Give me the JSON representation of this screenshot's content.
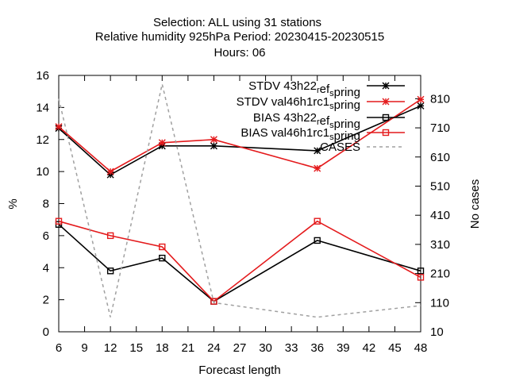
{
  "chart_data": {
    "type": "line",
    "title_lines": [
      "Selection: ALL using    31 stations",
      "Relative humidity 925hPa   Period: 20230415-20230515",
      "Hours:  06"
    ],
    "xlabel": "Forecast length",
    "ylabel": "%",
    "y2label": "No cases",
    "xlim": [
      6,
      48
    ],
    "ylim": [
      0,
      16
    ],
    "y2lim": [
      10,
      890
    ],
    "xticks": [
      6,
      9,
      12,
      15,
      18,
      21,
      24,
      27,
      30,
      33,
      36,
      39,
      42,
      45,
      48
    ],
    "yticks": [
      0,
      2,
      4,
      6,
      8,
      10,
      12,
      14,
      16
    ],
    "y2ticks": [
      10,
      110,
      210,
      310,
      410,
      510,
      610,
      710,
      810
    ],
    "grid": false,
    "legend_position": "top-right",
    "series": [
      {
        "name": "STDV 43h22_ref_spring",
        "legend_parts": [
          [
            "STDV 43h22",
            ""
          ],
          [
            "r",
            "sub"
          ],
          [
            "ef",
            ""
          ],
          [
            "s",
            "sub"
          ],
          [
            "pring",
            ""
          ]
        ],
        "axis": "left",
        "color": "#000000",
        "marker": "star",
        "dash": "",
        "x": [
          6,
          12,
          18,
          24,
          36,
          48
        ],
        "values": [
          12.7,
          9.8,
          11.6,
          11.6,
          11.3,
          14.1
        ]
      },
      {
        "name": "STDV val46h1rc1_spring",
        "legend_parts": [
          [
            "STDV val46h1rc1",
            ""
          ],
          [
            "s",
            "sub"
          ],
          [
            "pring",
            ""
          ]
        ],
        "axis": "left",
        "color": "#e41a1c",
        "marker": "star",
        "dash": "",
        "x": [
          6,
          12,
          18,
          24,
          36,
          48
        ],
        "values": [
          12.8,
          10.0,
          11.8,
          12.0,
          10.2,
          14.5
        ]
      },
      {
        "name": "BIAS 43h22_ref_spring",
        "legend_parts": [
          [
            "BIAS 43h22",
            ""
          ],
          [
            "r",
            "sub"
          ],
          [
            "ef",
            ""
          ],
          [
            "s",
            "sub"
          ],
          [
            "pring",
            ""
          ]
        ],
        "axis": "left",
        "color": "#000000",
        "marker": "square",
        "dash": "",
        "x": [
          6,
          12,
          18,
          24,
          36,
          48
        ],
        "values": [
          6.7,
          3.8,
          4.6,
          1.9,
          5.7,
          3.8
        ]
      },
      {
        "name": "BIAS val46h1rc1_spring",
        "legend_parts": [
          [
            "BIAS val46h1rc1",
            ""
          ],
          [
            "s",
            "sub"
          ],
          [
            "pring",
            ""
          ]
        ],
        "axis": "left",
        "color": "#e41a1c",
        "marker": "square",
        "dash": "",
        "x": [
          6,
          12,
          18,
          24,
          36,
          48
        ],
        "values": [
          6.9,
          6.0,
          5.3,
          1.9,
          6.9,
          3.4
        ]
      },
      {
        "name": "CASES",
        "legend_parts": [
          [
            "CASES",
            ""
          ]
        ],
        "axis": "right",
        "color": "#a0a0a0",
        "marker": "none",
        "dash": "4,4",
        "x": [
          6,
          12,
          18,
          24,
          36,
          48
        ],
        "values": [
          810,
          60,
          860,
          110,
          60,
          100
        ]
      }
    ]
  }
}
